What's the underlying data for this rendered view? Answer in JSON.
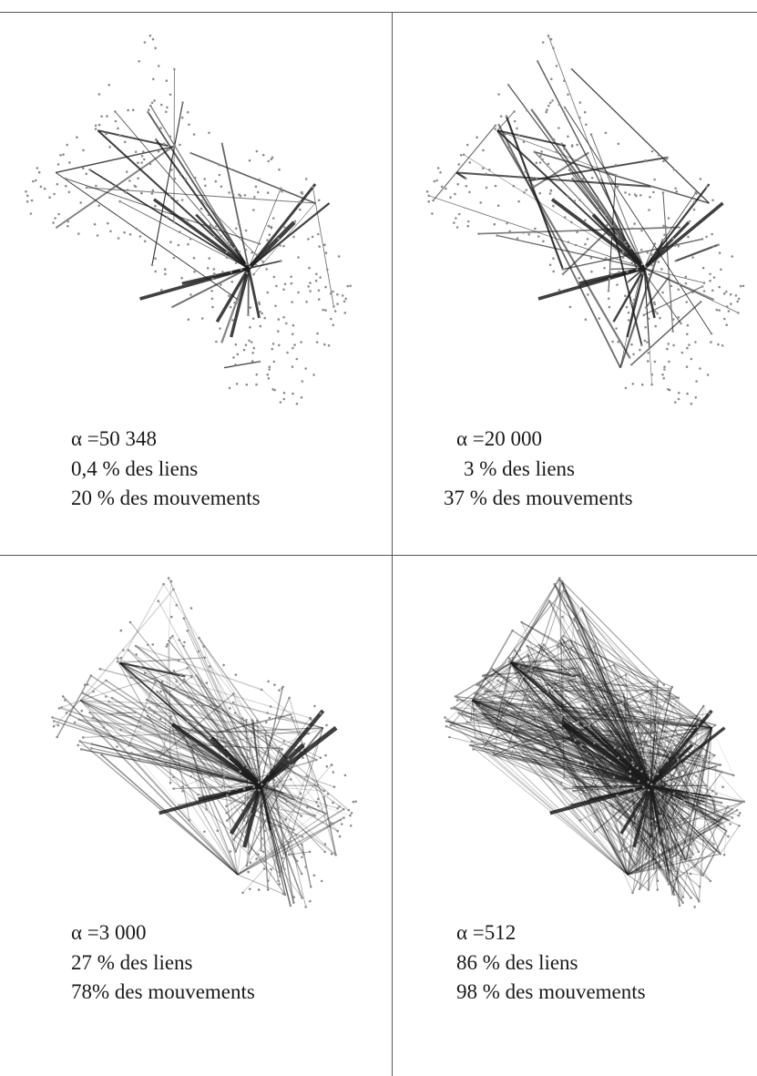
{
  "panels": [
    {
      "alpha": "α =50 348",
      "liens": "0,4 % des liens",
      "mouvements": "20 % des mouvements",
      "density": 0.004,
      "movements_share": 0.2
    },
    {
      "alpha": "α =20 000",
      "liens": "3 % des liens",
      "mouvements": "37 % des mouvements",
      "density": 0.03,
      "movements_share": 0.37
    },
    {
      "alpha": "α =3 000",
      "liens": "27 % des liens",
      "mouvements": "78% des mouvements",
      "density": 0.27,
      "movements_share": 0.78
    },
    {
      "alpha": "α =512",
      "liens": "86 % des liens",
      "mouvements": "98 % des mouvements",
      "density": 0.86,
      "movements_share": 0.98
    }
  ],
  "colors": {
    "node": "#8c8c8c",
    "edge": "#1e1e1e",
    "rule": "#555555"
  }
}
